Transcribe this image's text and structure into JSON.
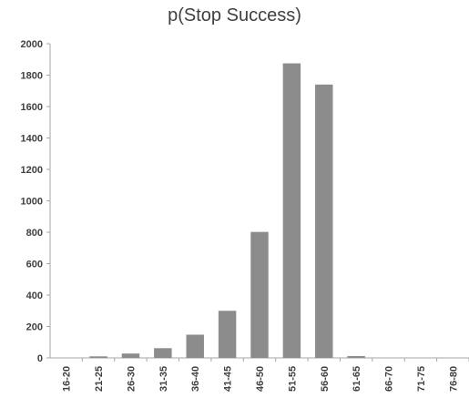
{
  "chart_data": {
    "type": "bar",
    "title": "p(Stop Success)",
    "xlabel": "",
    "ylabel": "",
    "categories": [
      "16-20",
      "21-25",
      "26-30",
      "31-35",
      "36-40",
      "41-45",
      "46-50",
      "51-55",
      "56-60",
      "61-65",
      "66-70",
      "71-75",
      "76-80"
    ],
    "values": [
      0,
      10,
      28,
      62,
      148,
      300,
      802,
      1875,
      1740,
      12,
      0,
      0,
      0
    ],
    "ylim": [
      0,
      2000
    ],
    "yticks": [
      0,
      200,
      400,
      600,
      800,
      1000,
      1200,
      1400,
      1600,
      1800,
      2000
    ],
    "grid": false,
    "legend": "none",
    "bar_color": "#8c8c8c"
  }
}
